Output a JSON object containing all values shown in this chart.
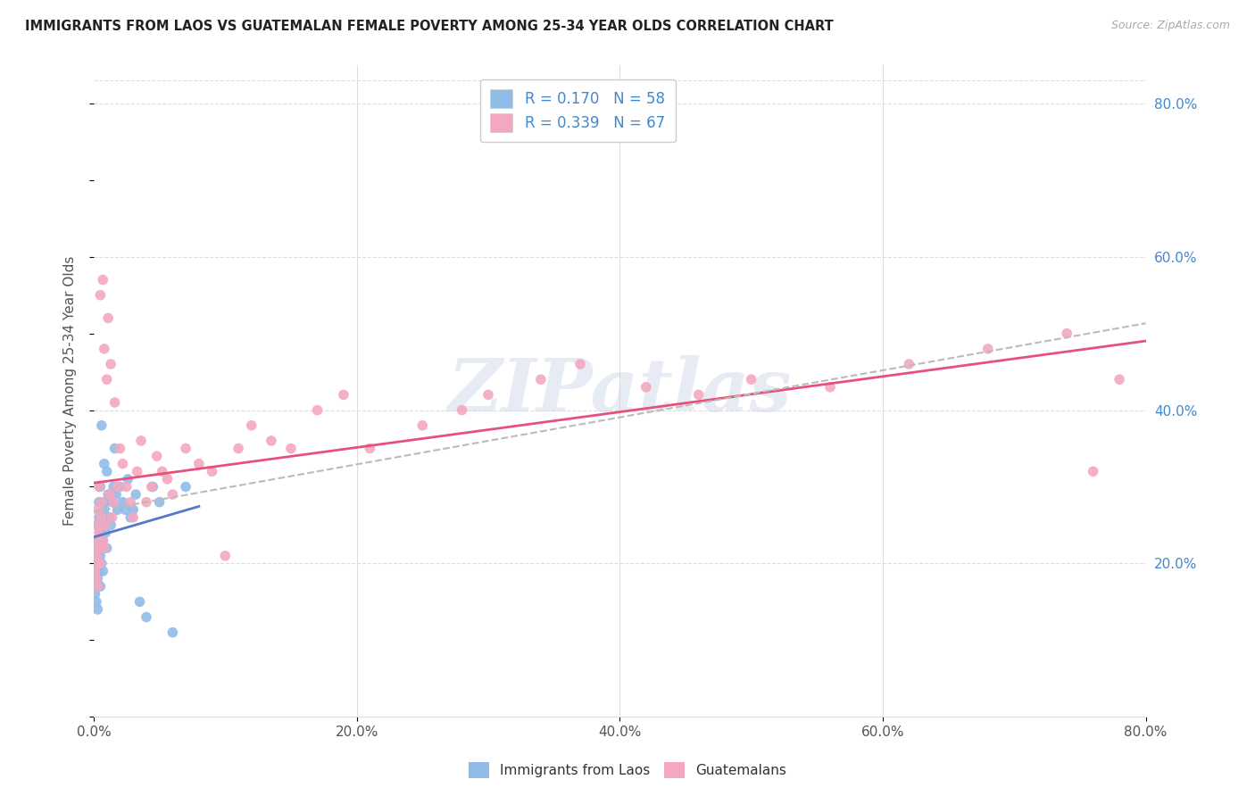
{
  "title": "IMMIGRANTS FROM LAOS VS GUATEMALAN FEMALE POVERTY AMONG 25-34 YEAR OLDS CORRELATION CHART",
  "source": "Source: ZipAtlas.com",
  "ylabel": "Female Poverty Among 25-34 Year Olds",
  "xlim": [
    0.0,
    0.8
  ],
  "ylim": [
    0.0,
    0.85
  ],
  "xticks": [
    0.0,
    0.2,
    0.4,
    0.6,
    0.8
  ],
  "yticks_right": [
    0.2,
    0.4,
    0.6,
    0.8
  ],
  "background_color": "#ffffff",
  "watermark": "ZIPatlas",
  "legend_labels": [
    "Immigrants from Laos",
    "Guatemalans"
  ],
  "legend_R": [
    "0.170",
    "0.339"
  ],
  "legend_N": [
    "58",
    "67"
  ],
  "blue_color": "#92bce8",
  "pink_color": "#f4a8c0",
  "blue_line_color": "#5577cc",
  "pink_line_color": "#e8507a",
  "dashed_line_color": "#bbbbbb",
  "laos_x": [
    0.001,
    0.001,
    0.001,
    0.001,
    0.002,
    0.002,
    0.002,
    0.002,
    0.002,
    0.003,
    0.003,
    0.003,
    0.003,
    0.003,
    0.004,
    0.004,
    0.004,
    0.004,
    0.005,
    0.005,
    0.005,
    0.005,
    0.005,
    0.006,
    0.006,
    0.006,
    0.006,
    0.007,
    0.007,
    0.007,
    0.008,
    0.008,
    0.008,
    0.009,
    0.009,
    0.01,
    0.01,
    0.011,
    0.012,
    0.013,
    0.014,
    0.015,
    0.016,
    0.017,
    0.018,
    0.02,
    0.022,
    0.024,
    0.026,
    0.028,
    0.03,
    0.032,
    0.035,
    0.04,
    0.045,
    0.05,
    0.06,
    0.07
  ],
  "laos_y": [
    0.2,
    0.22,
    0.18,
    0.16,
    0.21,
    0.19,
    0.23,
    0.17,
    0.15,
    0.22,
    0.2,
    0.18,
    0.25,
    0.14,
    0.26,
    0.22,
    0.19,
    0.28,
    0.24,
    0.21,
    0.23,
    0.17,
    0.3,
    0.25,
    0.22,
    0.2,
    0.38,
    0.26,
    0.23,
    0.19,
    0.27,
    0.25,
    0.33,
    0.28,
    0.24,
    0.32,
    0.22,
    0.29,
    0.26,
    0.25,
    0.28,
    0.3,
    0.35,
    0.29,
    0.27,
    0.3,
    0.28,
    0.27,
    0.31,
    0.26,
    0.27,
    0.29,
    0.15,
    0.13,
    0.3,
    0.28,
    0.11,
    0.3
  ],
  "guat_x": [
    0.001,
    0.001,
    0.002,
    0.002,
    0.002,
    0.003,
    0.003,
    0.003,
    0.004,
    0.004,
    0.004,
    0.005,
    0.005,
    0.005,
    0.006,
    0.006,
    0.007,
    0.007,
    0.008,
    0.008,
    0.009,
    0.01,
    0.011,
    0.012,
    0.013,
    0.014,
    0.015,
    0.016,
    0.018,
    0.02,
    0.022,
    0.025,
    0.028,
    0.03,
    0.033,
    0.036,
    0.04,
    0.044,
    0.048,
    0.052,
    0.056,
    0.06,
    0.07,
    0.08,
    0.09,
    0.1,
    0.11,
    0.12,
    0.135,
    0.15,
    0.17,
    0.19,
    0.21,
    0.25,
    0.28,
    0.3,
    0.34,
    0.37,
    0.42,
    0.46,
    0.5,
    0.56,
    0.62,
    0.68,
    0.74,
    0.76,
    0.78
  ],
  "guat_y": [
    0.22,
    0.19,
    0.25,
    0.21,
    0.18,
    0.23,
    0.17,
    0.27,
    0.2,
    0.24,
    0.3,
    0.22,
    0.55,
    0.2,
    0.26,
    0.28,
    0.57,
    0.23,
    0.22,
    0.48,
    0.25,
    0.44,
    0.52,
    0.29,
    0.46,
    0.26,
    0.28,
    0.41,
    0.3,
    0.35,
    0.33,
    0.3,
    0.28,
    0.26,
    0.32,
    0.36,
    0.28,
    0.3,
    0.34,
    0.32,
    0.31,
    0.29,
    0.35,
    0.33,
    0.32,
    0.21,
    0.35,
    0.38,
    0.36,
    0.35,
    0.4,
    0.42,
    0.35,
    0.38,
    0.4,
    0.42,
    0.44,
    0.46,
    0.43,
    0.42,
    0.44,
    0.43,
    0.46,
    0.48,
    0.5,
    0.32,
    0.44
  ]
}
